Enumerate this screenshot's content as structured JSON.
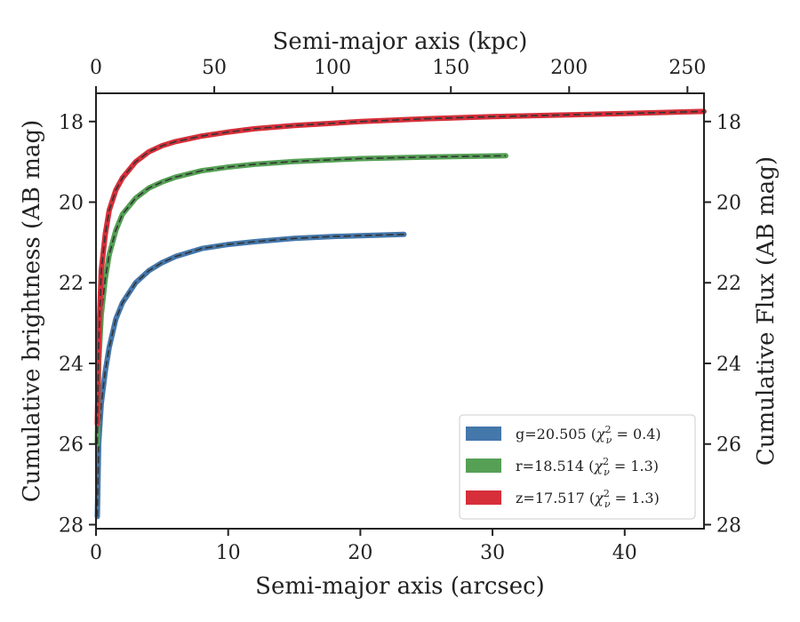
{
  "chart_data": {
    "type": "line",
    "xlabel": "Semi-major axis (arcsec)",
    "ylabel": "Cumulative brightness (AB mag)",
    "x2label": "Semi-major axis (kpc)",
    "y2label": "Cumulative Flux (AB mag)",
    "xlim": [
      0,
      46
    ],
    "ylim": [
      28.1,
      17.3
    ],
    "x2lim": [
      0,
      257
    ],
    "y_inverted": true,
    "xticks": [
      0,
      10,
      20,
      30,
      40
    ],
    "yticks": [
      18,
      20,
      22,
      24,
      26,
      28
    ],
    "x2ticks": [
      0,
      50,
      100,
      150,
      200,
      250
    ],
    "grid": false,
    "legend_position": "lower-right",
    "series": [
      {
        "name": "g=20.505",
        "chi2": "0.4",
        "color": "#4477aa",
        "x": [
          0.1,
          0.2,
          0.4,
          0.7,
          1.0,
          1.5,
          2.0,
          3.0,
          4.0,
          5.0,
          6.0,
          8.0,
          10.0,
          12.0,
          15.0,
          18.0,
          20.0,
          23.3
        ],
        "y": [
          27.8,
          26.0,
          25.0,
          24.2,
          23.6,
          22.9,
          22.5,
          22.0,
          21.7,
          21.5,
          21.35,
          21.15,
          21.05,
          20.98,
          20.9,
          20.85,
          20.83,
          20.8
        ]
      },
      {
        "name": "r=18.514",
        "chi2": "1.3",
        "color": "#55a055",
        "x": [
          0.1,
          0.2,
          0.4,
          0.7,
          1.0,
          1.5,
          2.0,
          3.0,
          4.0,
          5.0,
          6.0,
          8.0,
          10.0,
          12.0,
          15.0,
          20.0,
          25.0,
          31.0
        ],
        "y": [
          26.0,
          24.0,
          22.8,
          21.9,
          21.3,
          20.7,
          20.3,
          19.9,
          19.65,
          19.5,
          19.38,
          19.22,
          19.13,
          19.06,
          18.99,
          18.92,
          18.88,
          18.85
        ]
      },
      {
        "name": "z=17.517",
        "chi2": "1.3",
        "color": "#d62f3a",
        "x": [
          0.1,
          0.2,
          0.4,
          0.7,
          1.0,
          1.5,
          2.0,
          3.0,
          4.0,
          5.0,
          6.0,
          8.0,
          10.0,
          12.0,
          15.0,
          20.0,
          25.0,
          30.0,
          35.0,
          40.0,
          46.0
        ],
        "y": [
          25.5,
          23.5,
          21.7,
          20.8,
          20.2,
          19.7,
          19.4,
          19.0,
          18.75,
          18.6,
          18.5,
          18.36,
          18.26,
          18.18,
          18.1,
          18.0,
          17.93,
          17.88,
          17.84,
          17.8,
          17.75
        ]
      }
    ]
  }
}
